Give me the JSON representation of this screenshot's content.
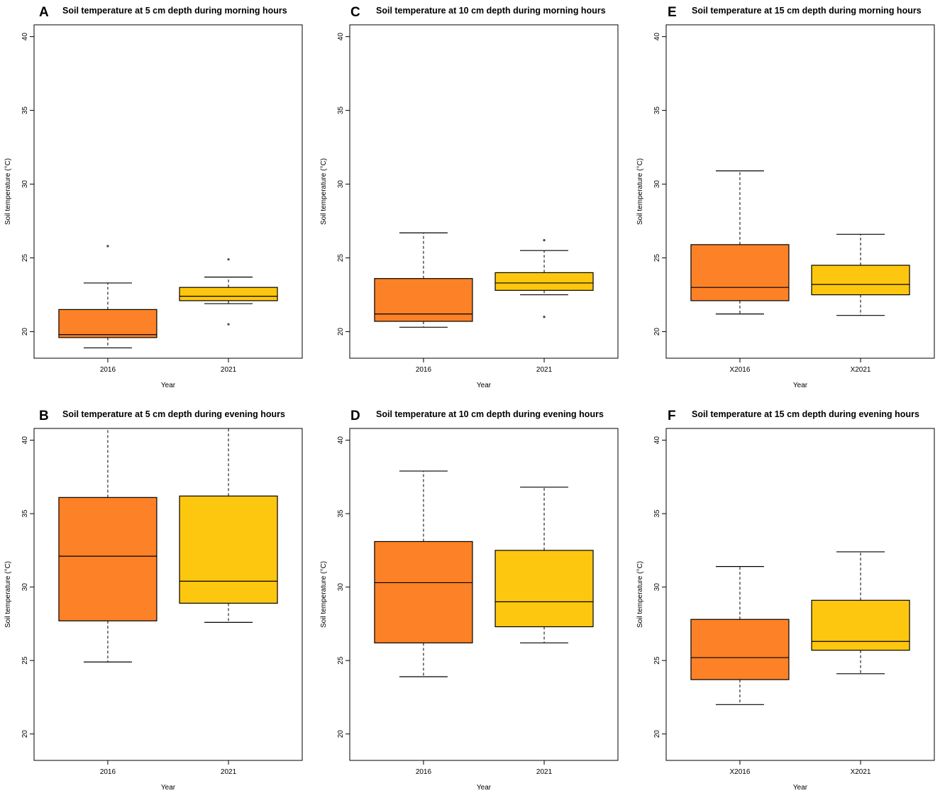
{
  "colors": {
    "year1": "#fd8126",
    "year2": "#fec70f",
    "line": "#000000"
  },
  "chart_data": [
    {
      "type": "box",
      "panel_label": "A",
      "title": "Soil temperature at 5 cm depth during morning hours",
      "xlabel": "Year",
      "ylabel": "Soil temperature (°C)",
      "ylim": [
        18.2,
        40.8
      ],
      "yticks": [
        "20",
        "25",
        "30",
        "35",
        "40"
      ],
      "categories": [
        "2016",
        "2021"
      ],
      "boxes": [
        {
          "whisker_low": 18.9,
          "q1": 19.6,
          "median": 19.8,
          "q3": 21.5,
          "whisker_high": 23.3,
          "outliers": [
            25.8
          ]
        },
        {
          "whisker_low": 21.9,
          "q1": 22.1,
          "median": 22.4,
          "q3": 23.0,
          "whisker_high": 23.7,
          "outliers": [
            24.9,
            20.5
          ]
        }
      ]
    },
    {
      "type": "box",
      "panel_label": "C",
      "title": "Soil temperature at 10 cm depth during morning hours",
      "xlabel": "Year",
      "ylabel": "Soil temperature (°C)",
      "ylim": [
        18.2,
        40.8
      ],
      "yticks": [
        "20",
        "25",
        "30",
        "35",
        "40"
      ],
      "categories": [
        "2016",
        "2021"
      ],
      "boxes": [
        {
          "whisker_low": 20.3,
          "q1": 20.7,
          "median": 21.2,
          "q3": 23.6,
          "whisker_high": 26.7,
          "outliers": []
        },
        {
          "whisker_low": 22.5,
          "q1": 22.8,
          "median": 23.3,
          "q3": 24.0,
          "whisker_high": 25.5,
          "outliers": [
            26.2,
            21.0
          ]
        }
      ]
    },
    {
      "type": "box",
      "panel_label": "E",
      "title": "Soil temperature at 15 cm depth during morning hours",
      "xlabel": "Year",
      "ylabel": "Soil temperature (°C)",
      "ylim": [
        18.2,
        40.8
      ],
      "yticks": [
        "20",
        "25",
        "30",
        "35",
        "40"
      ],
      "categories": [
        "X2016",
        "X2021"
      ],
      "boxes": [
        {
          "whisker_low": 21.2,
          "q1": 22.1,
          "median": 23.0,
          "q3": 25.9,
          "whisker_high": 30.9,
          "outliers": []
        },
        {
          "whisker_low": 21.1,
          "q1": 22.5,
          "median": 23.2,
          "q3": 24.5,
          "whisker_high": 26.6,
          "outliers": []
        }
      ]
    },
    {
      "type": "box",
      "panel_label": "B",
      "title": "Soil temperature at 5 cm depth during evening hours",
      "xlabel": "Year",
      "ylabel": "Soil temperature (°C)",
      "ylim": [
        18.2,
        40.8
      ],
      "yticks": [
        "20",
        "25",
        "30",
        "35",
        "40"
      ],
      "categories": [
        "2016",
        "2021"
      ],
      "boxes": [
        {
          "whisker_low": 24.9,
          "q1": 27.7,
          "median": 32.1,
          "q3": 36.1,
          "whisker_high": 40.8,
          "outliers": []
        },
        {
          "whisker_low": 27.6,
          "q1": 28.9,
          "median": 30.4,
          "q3": 36.2,
          "whisker_high": 40.8,
          "outliers": []
        }
      ]
    },
    {
      "type": "box",
      "panel_label": "D",
      "title": "Soil temperature at 10 cm depth during evening hours",
      "xlabel": "Year",
      "ylabel": "Soil temperature (°C)",
      "ylim": [
        18.2,
        40.8
      ],
      "yticks": [
        "20",
        "25",
        "30",
        "35",
        "40"
      ],
      "categories": [
        "2016",
        "2021"
      ],
      "boxes": [
        {
          "whisker_low": 23.9,
          "q1": 26.2,
          "median": 30.3,
          "q3": 33.1,
          "whisker_high": 37.9,
          "outliers": []
        },
        {
          "whisker_low": 26.2,
          "q1": 27.3,
          "median": 29.0,
          "q3": 32.5,
          "whisker_high": 36.8,
          "outliers": []
        }
      ]
    },
    {
      "type": "box",
      "panel_label": "F",
      "title": "Soil temperature at 15 cm depth during evening hours",
      "xlabel": "Year",
      "ylabel": "Soil temperature (°C)",
      "ylim": [
        18.2,
        40.8
      ],
      "yticks": [
        "20",
        "25",
        "30",
        "35",
        "40"
      ],
      "categories": [
        "X2016",
        "X2021"
      ],
      "boxes": [
        {
          "whisker_low": 22.0,
          "q1": 23.7,
          "median": 25.2,
          "q3": 27.8,
          "whisker_high": 31.4,
          "outliers": []
        },
        {
          "whisker_low": 24.1,
          "q1": 25.7,
          "median": 26.3,
          "q3": 29.1,
          "whisker_high": 32.4,
          "outliers": []
        }
      ]
    }
  ]
}
